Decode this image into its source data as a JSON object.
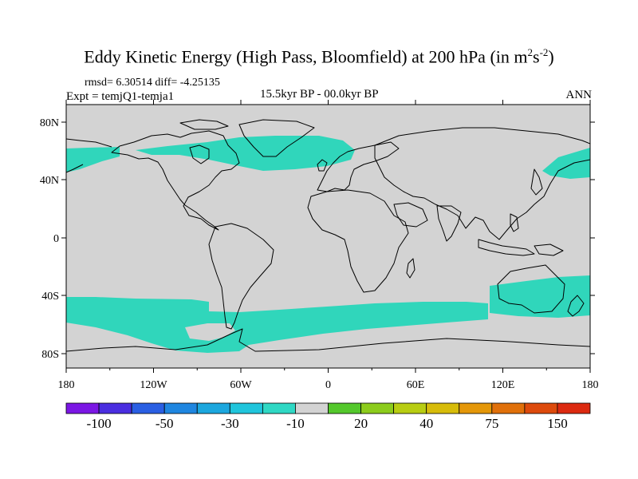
{
  "title_main": "Eddy Kinetic Energy (High Pass, Bloomfield) at 200 hPa (in m",
  "title_sup1": "2",
  "title_s": "s",
  "title_sup2": "-2",
  "title_close": ")",
  "stats": "rmsd= 6.30514 diff= -4.25135",
  "expt": "Expt = temjQ1-temja1",
  "period": "15.5kyr BP - 00.0kyr BP",
  "season": "ANN",
  "map": {
    "lat_ticks": [
      "80N",
      "40N",
      "0",
      "40S",
      "80S"
    ],
    "lon_ticks": [
      "180",
      "120W",
      "60W",
      "0",
      "60E",
      "120E",
      "180"
    ],
    "background_color": "#d3d3d3",
    "anomaly_color": "#30d6bb",
    "coast_color": "#000000"
  },
  "colorbar": {
    "labels": [
      "-100",
      "-50",
      "-30",
      "-10",
      "20",
      "40",
      "75",
      "150"
    ],
    "colors": [
      "#7b17e4",
      "#4a2ee0",
      "#2a5fe3",
      "#1f86e0",
      "#1ca7de",
      "#20c5dc",
      "#2fd8c4",
      "#d3d3d3",
      "#54c82c",
      "#8ccc1c",
      "#b8cd12",
      "#d7bc0a",
      "#e49708",
      "#e0700a",
      "#dd4a0c",
      "#dc2a10"
    ]
  }
}
